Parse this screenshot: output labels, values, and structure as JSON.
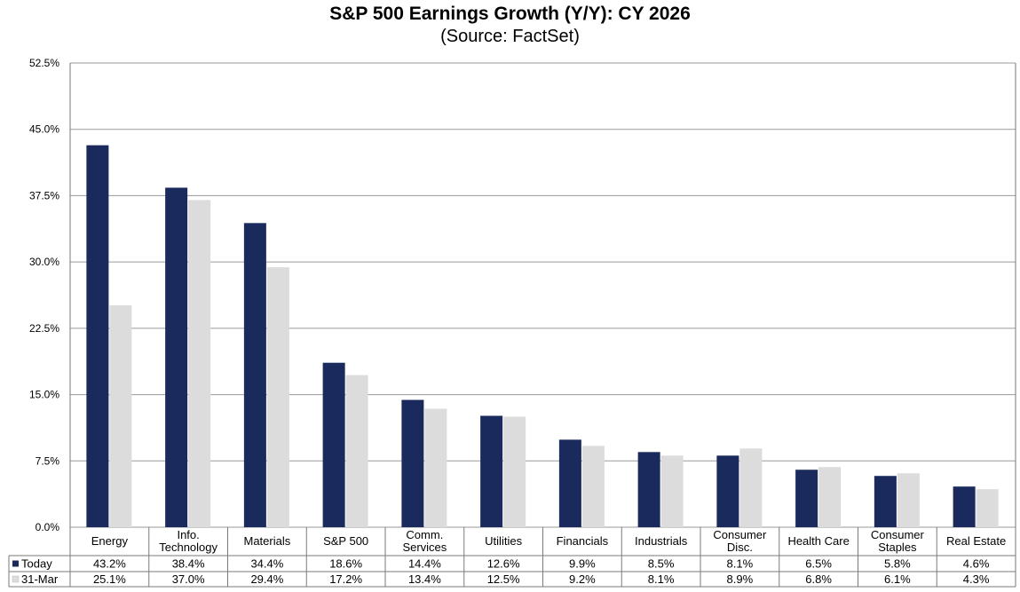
{
  "chart_data": {
    "type": "bar",
    "title": "S&P 500 Earnings Growth (Y/Y): CY 2026",
    "subtitle": "(Source: FactSet)",
    "xlabel": "",
    "ylabel": "",
    "ylim": [
      0,
      52.5
    ],
    "yticks": [
      "0.0%",
      "7.5%",
      "15.0%",
      "22.5%",
      "30.0%",
      "37.5%",
      "45.0%",
      "52.5%"
    ],
    "ytick_values": [
      0,
      7.5,
      15,
      22.5,
      30,
      37.5,
      45,
      52.5
    ],
    "grid": true,
    "categories": [
      [
        "Energy"
      ],
      [
        "Info.",
        "Technology"
      ],
      [
        "Materials"
      ],
      [
        "S&P 500"
      ],
      [
        "Comm.",
        "Services"
      ],
      [
        "Utilities"
      ],
      [
        "Financials"
      ],
      [
        "Industrials"
      ],
      [
        "Consumer",
        "Disc."
      ],
      [
        "Health Care"
      ],
      [
        "Consumer",
        "Staples"
      ],
      [
        "Real Estate"
      ]
    ],
    "series": [
      {
        "name": "Today",
        "color": "#1b2a5c",
        "values": [
          43.2,
          38.4,
          34.4,
          18.6,
          14.4,
          12.6,
          9.9,
          8.5,
          8.1,
          6.5,
          5.8,
          4.6
        ],
        "labels": [
          "43.2%",
          "38.4%",
          "34.4%",
          "18.6%",
          "14.4%",
          "12.6%",
          "9.9%",
          "8.5%",
          "8.1%",
          "6.5%",
          "5.8%",
          "4.6%"
        ]
      },
      {
        "name": "31-Mar",
        "color": "#dcdcdc",
        "values": [
          25.1,
          37.0,
          29.4,
          17.2,
          13.4,
          12.5,
          9.2,
          8.1,
          8.9,
          6.8,
          6.1,
          4.3
        ],
        "labels": [
          "25.1%",
          "37.0%",
          "29.4%",
          "17.2%",
          "13.4%",
          "12.5%",
          "9.2%",
          "8.1%",
          "8.9%",
          "6.8%",
          "6.1%",
          "4.3%"
        ]
      }
    ],
    "legend": "data-table-left"
  }
}
